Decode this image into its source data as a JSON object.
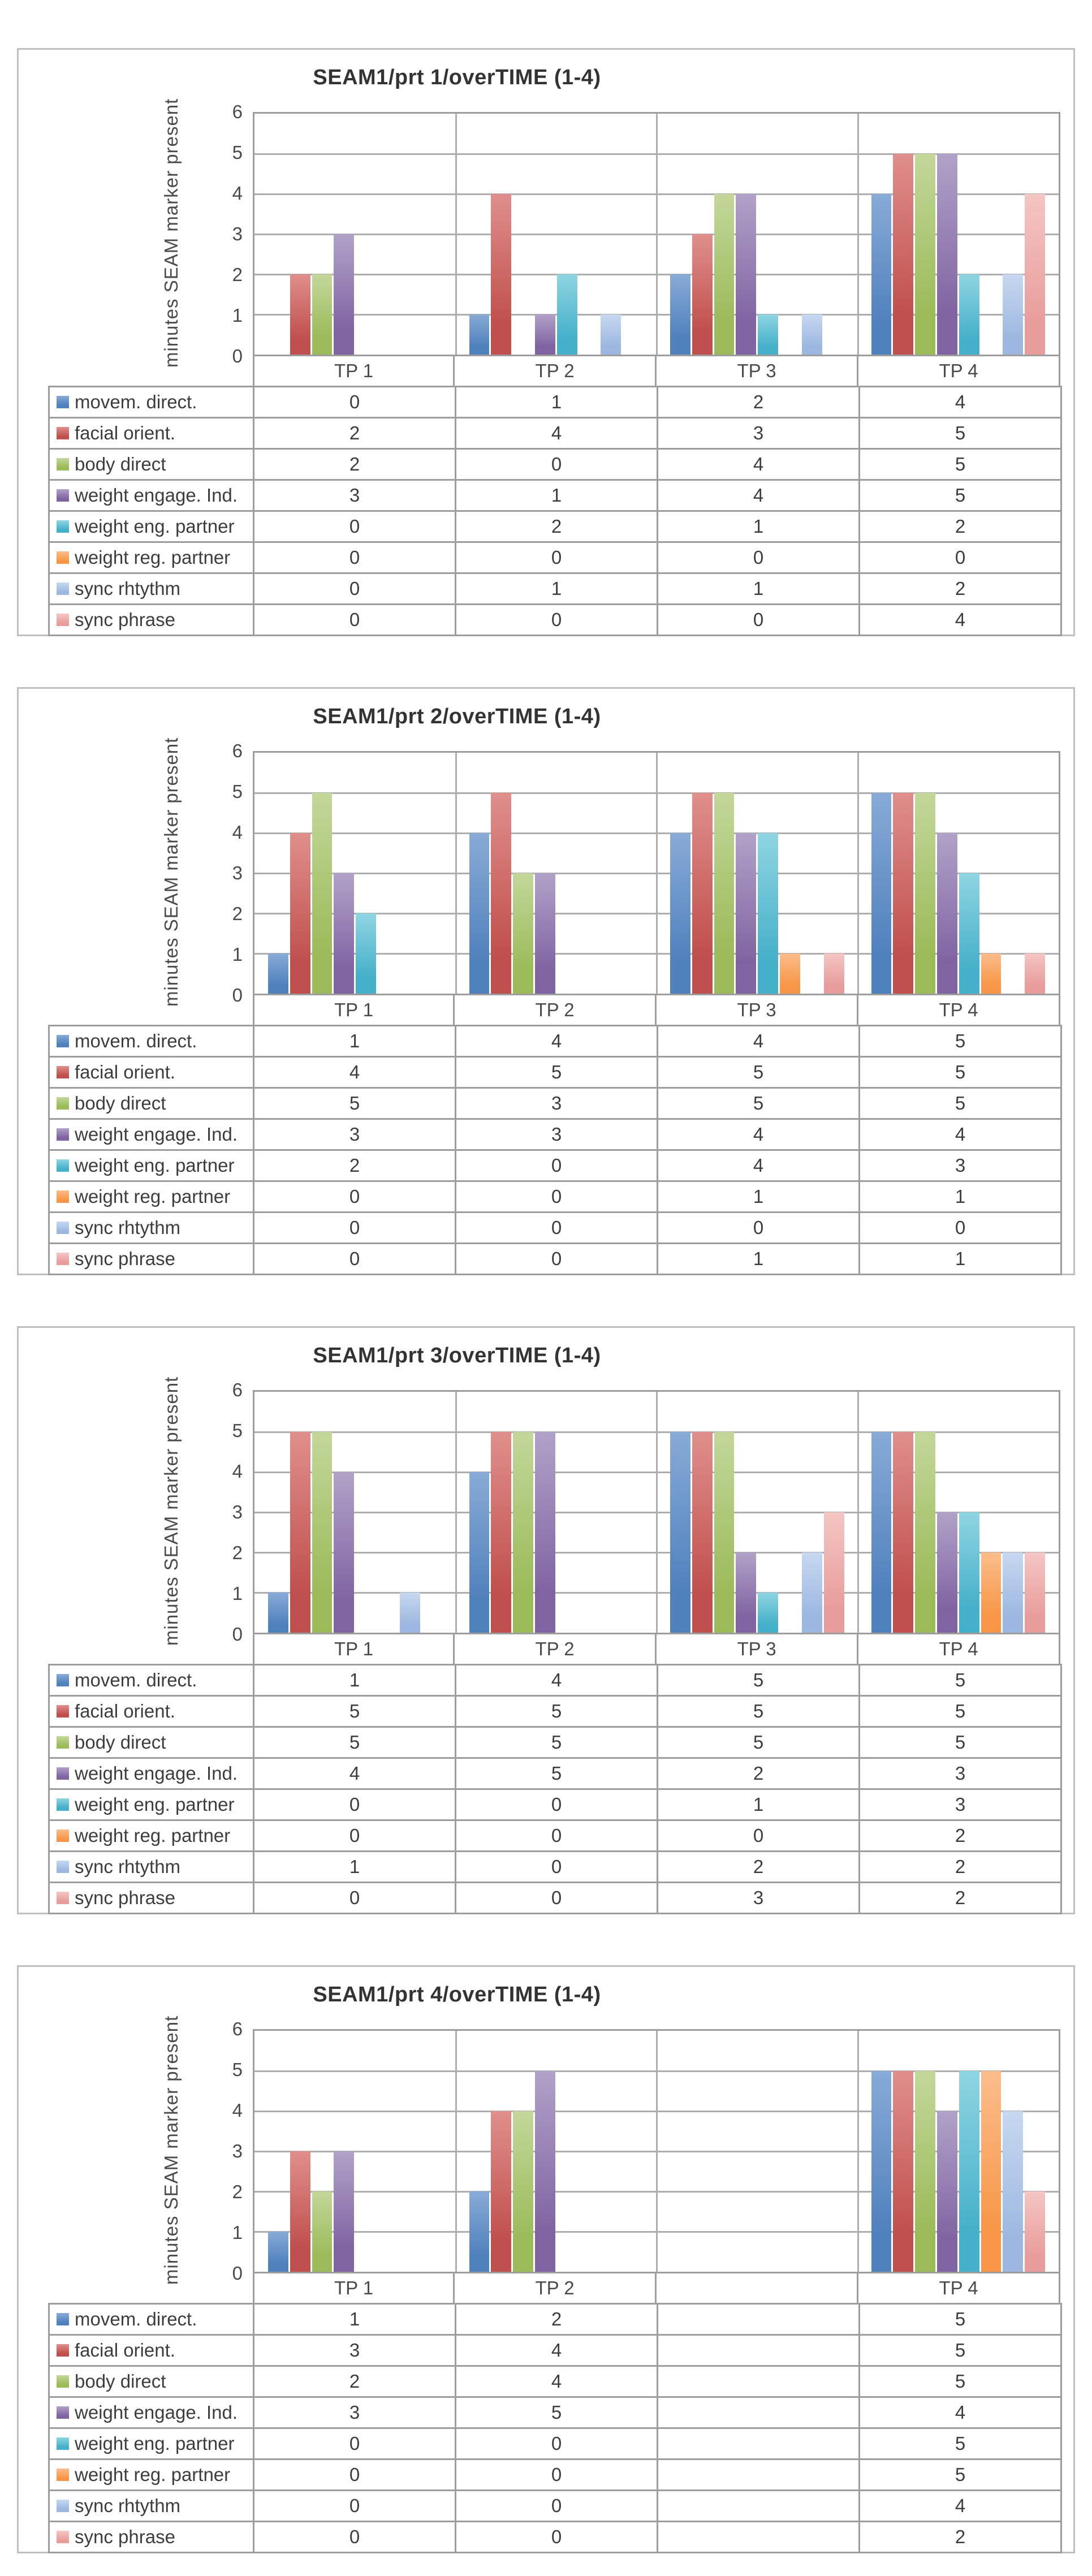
{
  "axis": {
    "y_title": "minutes SEAM marker present",
    "y_ticks": [
      "6",
      "5",
      "4",
      "3",
      "2",
      "1",
      "0"
    ],
    "y_max": 6
  },
  "series_palette": [
    {
      "name": "movem. direct.",
      "color": "#4f81bd",
      "color_light": "#88abd6"
    },
    {
      "name": "facial orient.",
      "color": "#c0504d",
      "color_light": "#e08f8c"
    },
    {
      "name": "body direct",
      "color": "#9bbb59",
      "color_light": "#c3d79a"
    },
    {
      "name": "weight engage. Ind.",
      "color": "#8064a2",
      "color_light": "#b1a2c8"
    },
    {
      "name": "weight eng. partner",
      "color": "#45b0c9",
      "color_light": "#8fd5e2"
    },
    {
      "name": "weight reg. partner",
      "color": "#f79646",
      "color_light": "#fbbd8c"
    },
    {
      "name": "sync rhtythm",
      "color": "#9cb8e0",
      "color_light": "#c7d8f0"
    },
    {
      "name": "sync phrase",
      "color": "#e89d9b",
      "color_light": "#f4c6c4"
    }
  ],
  "chart_data": [
    {
      "type": "bar",
      "title": "SEAM1/prt 1/overTIME (1-4)",
      "categories": [
        "TP 1",
        "TP 2",
        "TP 3",
        "TP 4"
      ],
      "xlabel": "",
      "ylabel": "minutes SEAM marker present",
      "ylim": [
        0,
        6
      ],
      "grid": true,
      "legend_position": "data-table-below",
      "series": [
        {
          "name": "movem. direct.",
          "values": [
            0,
            1,
            2,
            4
          ]
        },
        {
          "name": "facial orient.",
          "values": [
            2,
            4,
            3,
            5
          ]
        },
        {
          "name": "body direct",
          "values": [
            2,
            0,
            4,
            5
          ]
        },
        {
          "name": "weight engage. Ind.",
          "values": [
            3,
            1,
            4,
            5
          ]
        },
        {
          "name": "weight eng. partner",
          "values": [
            0,
            2,
            1,
            2
          ]
        },
        {
          "name": "weight reg. partner",
          "values": [
            0,
            0,
            0,
            0
          ]
        },
        {
          "name": "sync rhtythm",
          "values": [
            0,
            1,
            1,
            2
          ]
        },
        {
          "name": "sync phrase",
          "values": [
            0,
            0,
            0,
            4
          ]
        }
      ]
    },
    {
      "type": "bar",
      "title": "SEAM1/prt 2/overTIME (1-4)",
      "categories": [
        "TP 1",
        "TP 2",
        "TP 3",
        "TP 4"
      ],
      "xlabel": "",
      "ylabel": "minutes SEAM marker present",
      "ylim": [
        0,
        6
      ],
      "grid": true,
      "legend_position": "data-table-below",
      "series": [
        {
          "name": "movem. direct.",
          "values": [
            1,
            4,
            4,
            5
          ]
        },
        {
          "name": "facial orient.",
          "values": [
            4,
            5,
            5,
            5
          ]
        },
        {
          "name": "body direct",
          "values": [
            5,
            3,
            5,
            5
          ]
        },
        {
          "name": "weight engage. Ind.",
          "values": [
            3,
            3,
            4,
            4
          ]
        },
        {
          "name": "weight eng. partner",
          "values": [
            2,
            0,
            4,
            3
          ]
        },
        {
          "name": "weight reg. partner",
          "values": [
            0,
            0,
            1,
            1
          ]
        },
        {
          "name": "sync rhtythm",
          "values": [
            0,
            0,
            0,
            0
          ]
        },
        {
          "name": "sync phrase",
          "values": [
            0,
            0,
            1,
            1
          ]
        }
      ]
    },
    {
      "type": "bar",
      "title": "SEAM1/prt 3/overTIME (1-4)",
      "categories": [
        "TP 1",
        "TP 2",
        "TP 3",
        "TP 4"
      ],
      "xlabel": "",
      "ylabel": "minutes SEAM marker present",
      "ylim": [
        0,
        6
      ],
      "grid": true,
      "legend_position": "data-table-below",
      "series": [
        {
          "name": "movem. direct.",
          "values": [
            1,
            4,
            5,
            5
          ]
        },
        {
          "name": "facial orient.",
          "values": [
            5,
            5,
            5,
            5
          ]
        },
        {
          "name": "body direct",
          "values": [
            5,
            5,
            5,
            5
          ]
        },
        {
          "name": "weight engage. Ind.",
          "values": [
            4,
            5,
            2,
            3
          ]
        },
        {
          "name": "weight eng. partner",
          "values": [
            0,
            0,
            1,
            3
          ]
        },
        {
          "name": "weight reg. partner",
          "values": [
            0,
            0,
            0,
            2
          ]
        },
        {
          "name": "sync rhtythm",
          "values": [
            1,
            0,
            2,
            2
          ]
        },
        {
          "name": "sync phrase",
          "values": [
            0,
            0,
            3,
            2
          ]
        }
      ]
    },
    {
      "type": "bar",
      "title": "SEAM1/prt 4/overTIME (1-4)",
      "categories": [
        "TP 1",
        "TP 2",
        "",
        "TP 4"
      ],
      "xlabel": "",
      "ylabel": "minutes SEAM marker present",
      "ylim": [
        0,
        6
      ],
      "grid": true,
      "legend_position": "data-table-below",
      "series": [
        {
          "name": "movem. direct.",
          "values": [
            1,
            2,
            null,
            5
          ]
        },
        {
          "name": "facial orient.",
          "values": [
            3,
            4,
            null,
            5
          ]
        },
        {
          "name": "body direct",
          "values": [
            2,
            4,
            null,
            5
          ]
        },
        {
          "name": "weight engage. Ind.",
          "values": [
            3,
            5,
            null,
            4
          ]
        },
        {
          "name": "weight eng. partner",
          "values": [
            0,
            0,
            null,
            5
          ]
        },
        {
          "name": "weight reg. partner",
          "values": [
            0,
            0,
            null,
            5
          ]
        },
        {
          "name": "sync rhtythm",
          "values": [
            0,
            0,
            null,
            4
          ]
        },
        {
          "name": "sync phrase",
          "values": [
            0,
            0,
            null,
            2
          ]
        }
      ]
    }
  ]
}
